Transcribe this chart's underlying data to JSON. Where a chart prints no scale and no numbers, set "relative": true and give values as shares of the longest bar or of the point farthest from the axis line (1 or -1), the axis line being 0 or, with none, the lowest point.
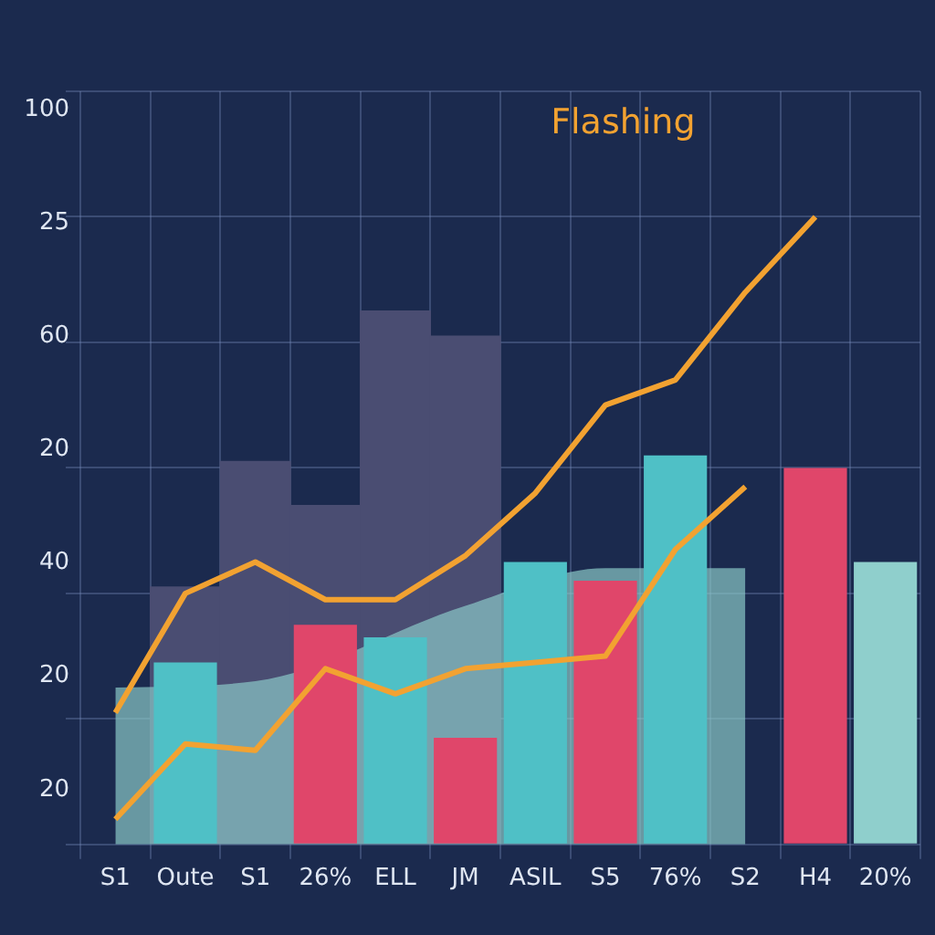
{
  "chart_data": {
    "type": "bar",
    "relative": true,
    "categories": [
      "S1",
      "Oute",
      "S1",
      "26%",
      "ELL",
      "JM",
      "ASIL",
      "S5",
      "76%",
      "S2",
      "H4",
      "20%"
    ],
    "series": [
      {
        "color": "#4a4d72",
        "values": [
          null,
          0.41,
          0.61,
          0.54,
          0.85,
          0.81,
          null,
          null,
          null,
          null,
          null,
          null
        ]
      },
      {
        "type": "area",
        "color": "#8fcfcc",
        "values": [
          0.25,
          null,
          0.26,
          null,
          null,
          0.38,
          null,
          0.44,
          null,
          0.44,
          null,
          null
        ]
      },
      {
        "colors": [
          "#4fc0c6",
          "#4fc0c6",
          "#4fc0c6",
          "#e0466a",
          "#4fc0c6",
          "#e0466a",
          "#4fc0c6",
          "#e0466a",
          "#4fc0c6",
          "#4fc0c6",
          "#e0466a",
          "#8fcfcc"
        ],
        "values": [
          null,
          0.29,
          null,
          0.35,
          0.33,
          0.17,
          0.45,
          0.42,
          0.62,
          null,
          0.6,
          0.45
        ]
      },
      {
        "type": "line",
        "color": "#f2a231",
        "values": [
          0.04,
          0.16,
          0.15,
          0.28,
          0.24,
          0.28,
          0.29,
          0.3,
          0.47,
          0.57,
          null,
          null
        ]
      },
      {
        "type": "line",
        "color": "#f2a231",
        "values": [
          0.21,
          0.4,
          0.45,
          0.39,
          0.39,
          0.46,
          0.56,
          0.7,
          0.74,
          0.88,
          1,
          null
        ]
      }
    ],
    "grid": true,
    "legend": false,
    "annotations": [
      "Flashing",
      "100",
      "25",
      "60",
      "20",
      "40",
      "20",
      "20"
    ]
  }
}
